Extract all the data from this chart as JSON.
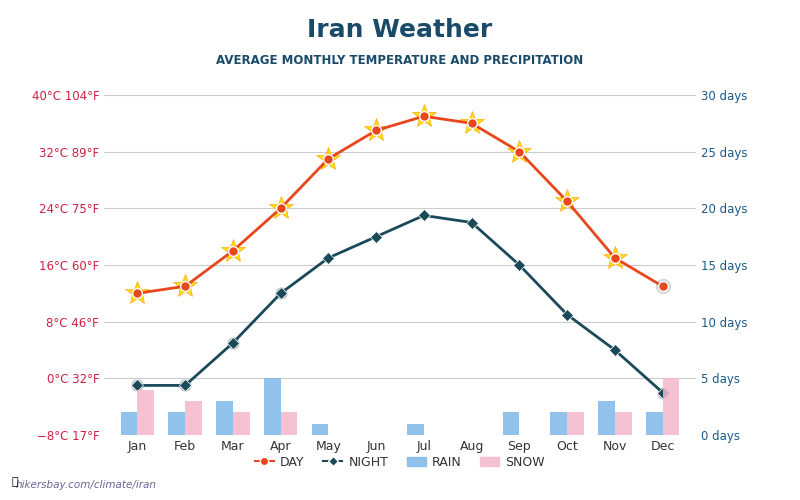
{
  "title": "Iran Weather",
  "subtitle": "AVERAGE MONTHLY TEMPERATURE AND PRECIPITATION",
  "months": [
    "Jan",
    "Feb",
    "Mar",
    "Apr",
    "May",
    "Jun",
    "Jul",
    "Aug",
    "Sep",
    "Oct",
    "Nov",
    "Dec"
  ],
  "day_temp": [
    12,
    13,
    18,
    24,
    31,
    35,
    37,
    36,
    32,
    25,
    17,
    13
  ],
  "night_temp": [
    -1,
    -1,
    5,
    12,
    17,
    20,
    23,
    22,
    16,
    9,
    4,
    -2
  ],
  "rain_days": [
    2,
    2,
    3,
    5,
    1,
    0,
    1,
    0,
    2,
    2,
    3,
    2
  ],
  "snow_days": [
    4,
    3,
    2,
    2,
    0,
    0,
    0,
    0,
    0,
    2,
    2,
    5
  ],
  "temp_yticks": [
    -8,
    0,
    8,
    16,
    24,
    32,
    40
  ],
  "temp_ylabels": [
    "−8°C 17°F",
    "0°C 32°F",
    "8°C 46°F",
    "16°C 60°F",
    "24°C 75°F",
    "32°C 89°F",
    "40°C 104°F"
  ],
  "precip_yticks": [
    0,
    5,
    10,
    15,
    20,
    25,
    30
  ],
  "precip_ylabels": [
    "0 days",
    "5 days",
    "10 days",
    "15 days",
    "20 days",
    "25 days",
    "30 days"
  ],
  "day_color": "#e8471e",
  "night_color": "#1a4a5a",
  "rain_color": "#7db8e8",
  "snow_color": "#f4b8cc",
  "title_color": "#1a4a6a",
  "subtitle_color": "#1a4a6a",
  "axis_label_color_left": "#cc2244",
  "axis_label_color_right": "#1a5a8a",
  "watermark": "hikersbay.com/climate/iran",
  "figsize": [
    8.0,
    5.0
  ],
  "dpi": 100
}
